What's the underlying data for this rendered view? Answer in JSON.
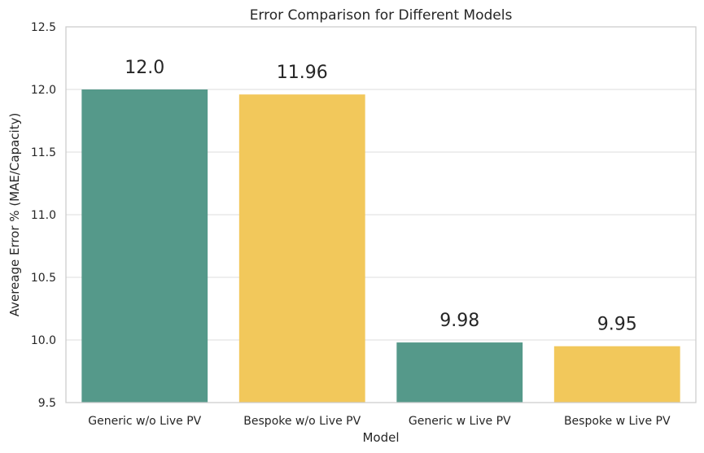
{
  "chart_data": {
    "type": "bar",
    "title": "Error Comparison for Different Models",
    "xlabel": "Model",
    "ylabel": "Avereage Error % (MAE/Capacity)",
    "categories": [
      "Generic w/o Live PV",
      "Bespoke w/o Live PV",
      "Generic w Live PV",
      "Bespoke w Live PV"
    ],
    "values": [
      12.0,
      11.96,
      9.98,
      9.95
    ],
    "data_labels": [
      "12.0",
      "11.96",
      "9.98",
      "9.95"
    ],
    "colors": [
      "#55998a",
      "#f2c85b",
      "#55998a",
      "#f2c85b"
    ],
    "ylim": [
      9.5,
      12.5
    ],
    "yticks": [
      9.5,
      10.0,
      10.5,
      11.0,
      11.5,
      12.0,
      12.5
    ],
    "ytick_labels": [
      "9.5",
      "10.0",
      "10.5",
      "11.0",
      "11.5",
      "12.0",
      "12.5"
    ],
    "grid": true,
    "legend": "none"
  }
}
